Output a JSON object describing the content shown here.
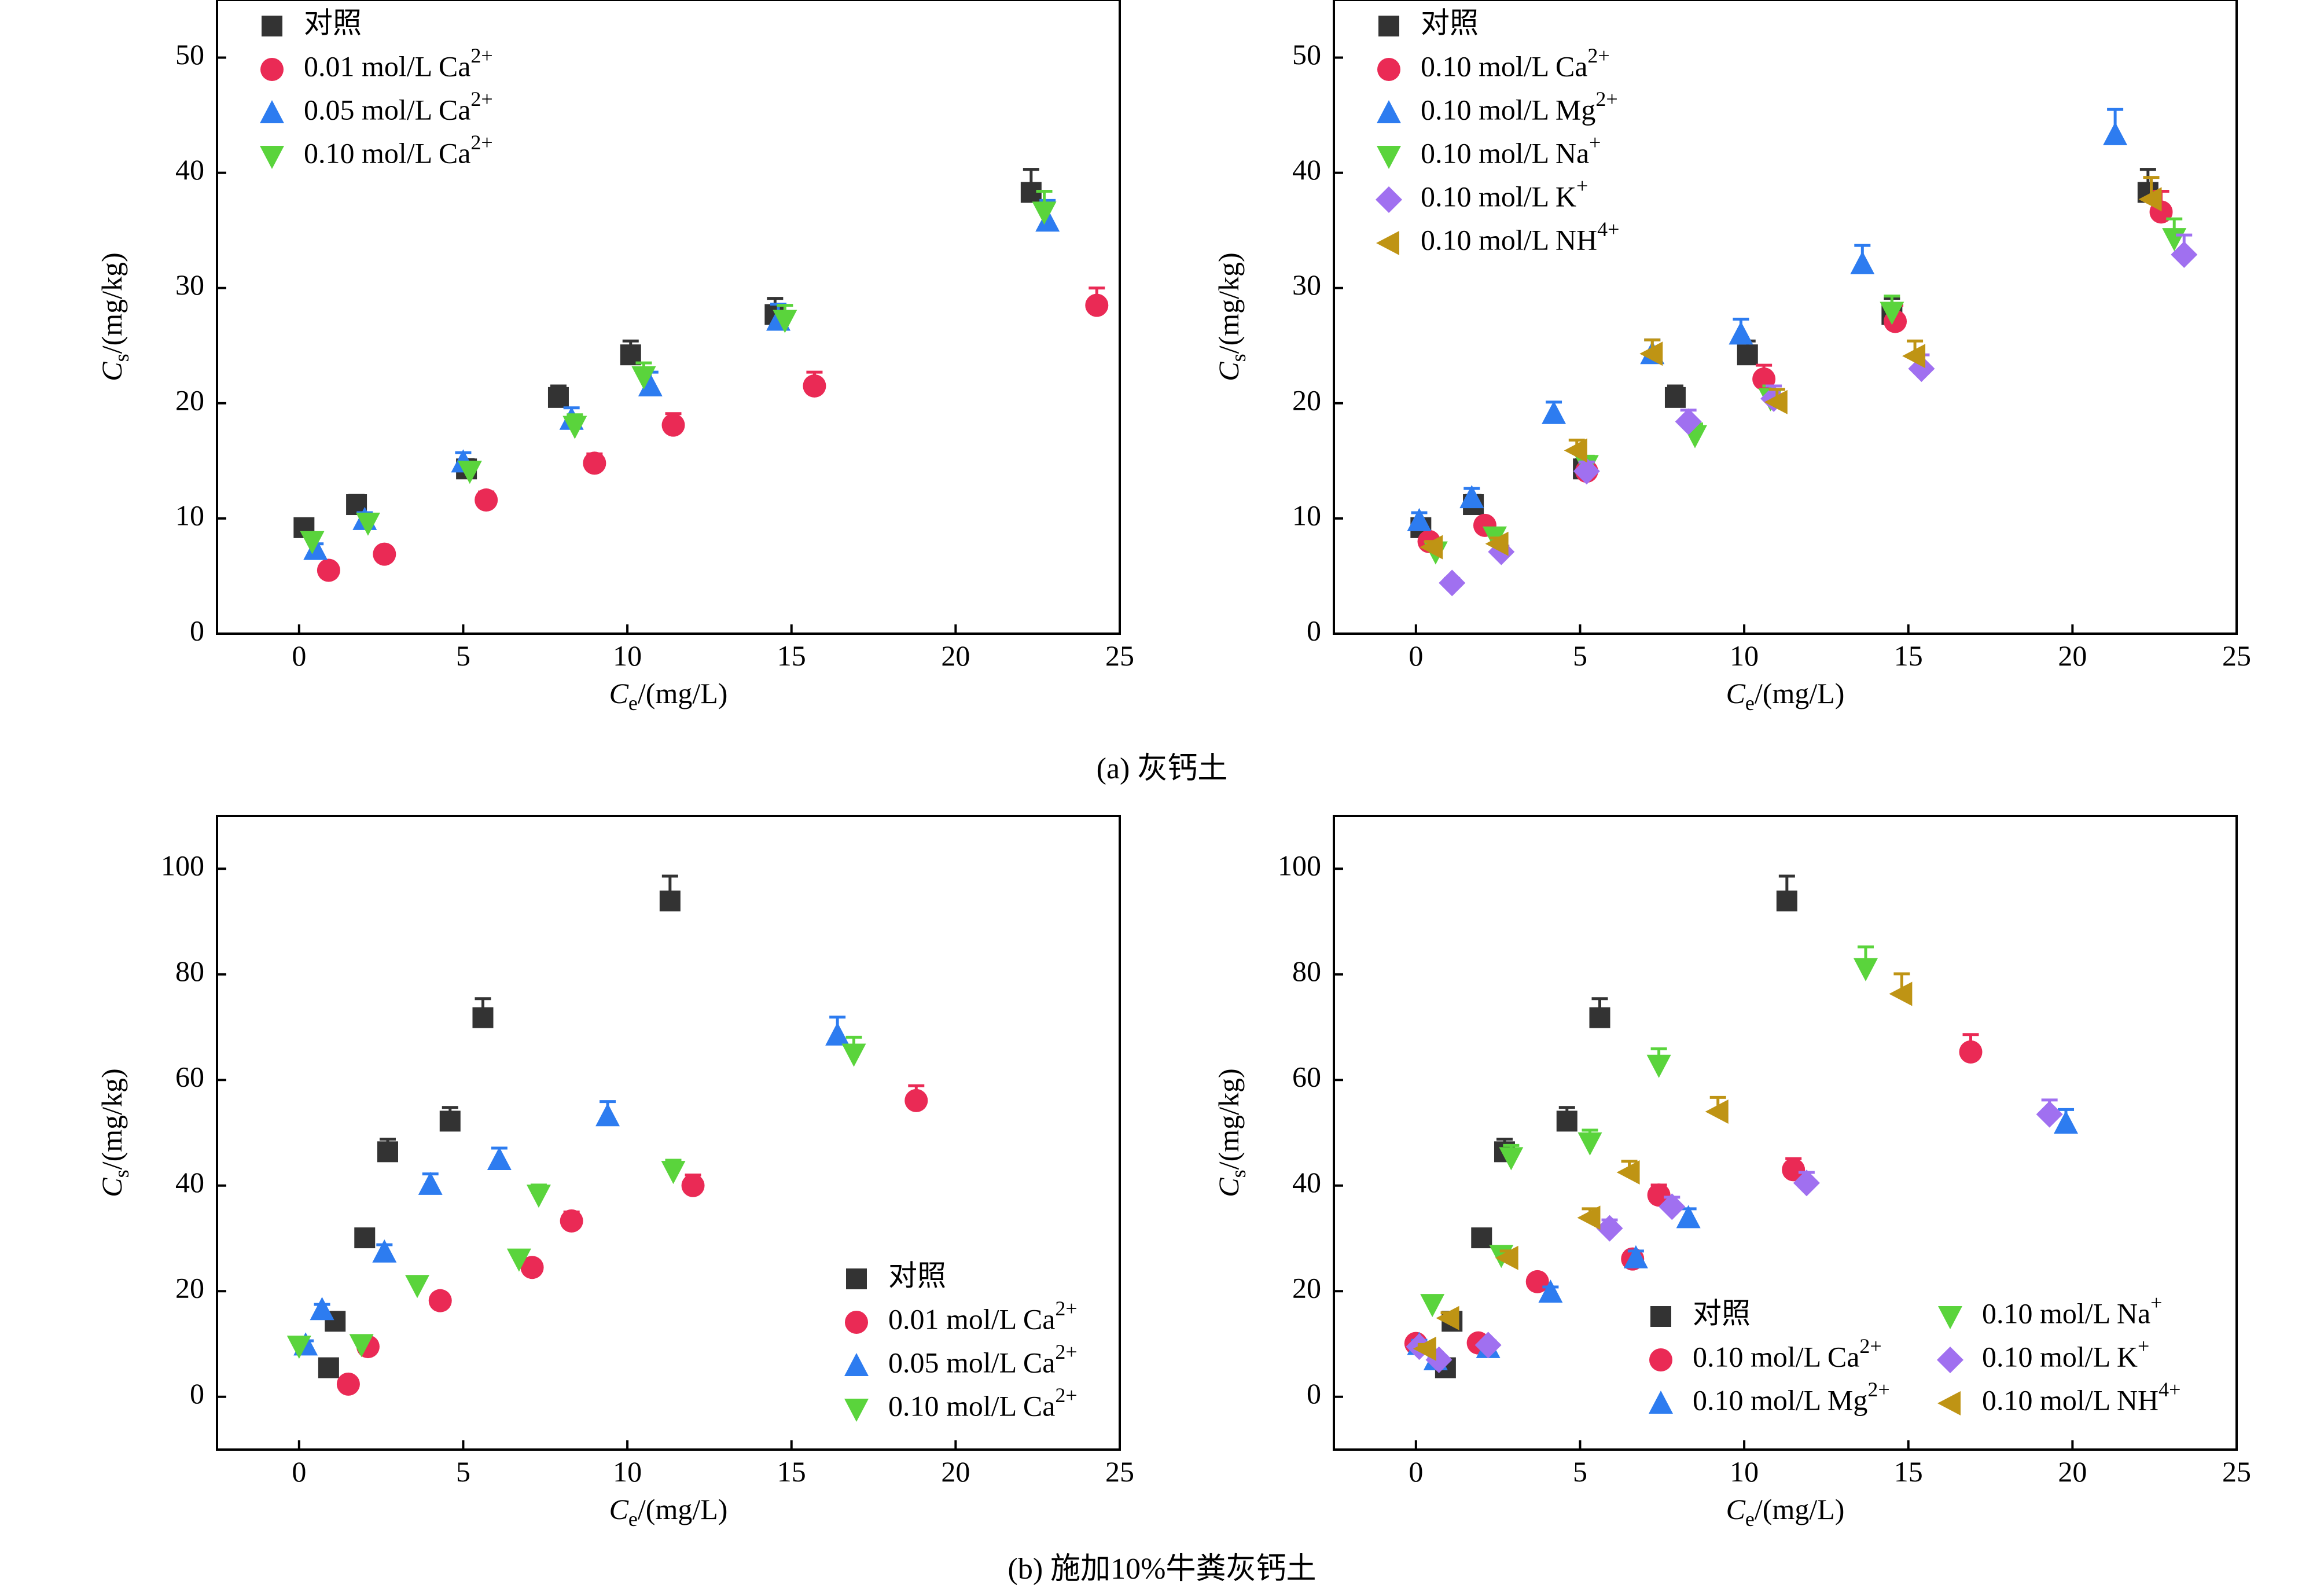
{
  "captions": {
    "a": "(a) 灰钙土",
    "b": "(b) 施加10%牛粪灰钙土"
  },
  "chart_data": [
    {
      "type": "scatter",
      "panel": "a-left",
      "xlabel": "Ce/(mg/L)",
      "ylabel": "Cs/(mg/kg)",
      "xlim": [
        -2.5,
        25
      ],
      "ylim": [
        0,
        55
      ],
      "xticks": [
        0,
        5,
        10,
        15,
        20,
        25
      ],
      "yticks": [
        0,
        10,
        20,
        30,
        40,
        50
      ],
      "legend_position": "top-left",
      "series": [
        {
          "name": "对照",
          "marker": "square",
          "color": "#333333",
          "points": [
            [
              0.15,
              9.2,
              0.6
            ],
            [
              1.75,
              11.2,
              0.8
            ],
            [
              5.1,
              14.3,
              0.8
            ],
            [
              7.9,
              20.5,
              1.0
            ],
            [
              10.1,
              24.2,
              1.2
            ],
            [
              14.5,
              27.7,
              1.4
            ],
            [
              22.3,
              38.3,
              2.0
            ]
          ]
        },
        {
          "name": "0.01 mol/L Ca2+",
          "marker": "circle",
          "color": "#ea2a55",
          "points": [
            [
              0.9,
              5.5,
              0.4
            ],
            [
              2.6,
              6.9,
              0.5
            ],
            [
              5.7,
              11.6,
              0.7
            ],
            [
              9.0,
              14.8,
              0.8
            ],
            [
              11.4,
              18.1,
              1.0
            ],
            [
              15.7,
              21.5,
              1.2
            ],
            [
              24.3,
              28.5,
              1.5
            ]
          ]
        },
        {
          "name": "0.05 mol/L Ca2+",
          "marker": "triangle-up",
          "color": "#2d7cf0",
          "points": [
            [
              0.5,
              7.3,
              0.5
            ],
            [
              2.0,
              9.9,
              0.6
            ],
            [
              5.0,
              14.9,
              0.8
            ],
            [
              8.3,
              18.6,
              1.0
            ],
            [
              10.7,
              21.5,
              1.2
            ],
            [
              14.6,
              27.2,
              1.4
            ],
            [
              22.8,
              35.8,
              1.8
            ]
          ]
        },
        {
          "name": "0.10 mol/L Ca2+",
          "marker": "triangle-down",
          "color": "#5ad43c",
          "points": [
            [
              0.4,
              8.0,
              0.5
            ],
            [
              2.1,
              9.6,
              0.6
            ],
            [
              5.2,
              14.1,
              0.7
            ],
            [
              8.4,
              18.0,
              1.0
            ],
            [
              10.5,
              22.3,
              1.2
            ],
            [
              14.8,
              27.2,
              1.3
            ],
            [
              22.7,
              36.6,
              1.8
            ]
          ]
        }
      ]
    },
    {
      "type": "scatter",
      "panel": "a-right",
      "xlabel": "Ce/(mg/L)",
      "ylabel": "Cs/(mg/kg)",
      "xlim": [
        -2.5,
        25
      ],
      "ylim": [
        0,
        55
      ],
      "xticks": [
        0,
        5,
        10,
        15,
        20,
        25
      ],
      "yticks": [
        0,
        10,
        20,
        30,
        40,
        50
      ],
      "legend_position": "top-left",
      "series": [
        {
          "name": "对照",
          "marker": "square",
          "color": "#333333",
          "points": [
            [
              0.15,
              9.2,
              0.6
            ],
            [
              1.75,
              11.2,
              0.8
            ],
            [
              5.1,
              14.3,
              0.8
            ],
            [
              7.9,
              20.5,
              1.0
            ],
            [
              10.1,
              24.2,
              1.2
            ],
            [
              14.5,
              27.7,
              1.4
            ],
            [
              22.3,
              38.3,
              2.0
            ]
          ]
        },
        {
          "name": "0.10 mol/L Ca2+",
          "marker": "circle",
          "color": "#ea2a55",
          "points": [
            [
              0.4,
              8.0,
              0.5
            ],
            [
              2.1,
              9.4,
              0.6
            ],
            [
              5.2,
              14.1,
              0.8
            ],
            [
              10.6,
              22.1,
              1.2
            ],
            [
              14.6,
              27.1,
              1.4
            ],
            [
              22.7,
              36.6,
              1.8
            ]
          ]
        },
        {
          "name": "0.10 mol/L Mg2+",
          "marker": "triangle-up",
          "color": "#2d7cf0",
          "points": [
            [
              0.1,
              9.8,
              0.7
            ],
            [
              1.7,
              11.8,
              0.8
            ],
            [
              4.2,
              19.1,
              1.0
            ],
            [
              7.2,
              24.3,
              1.2
            ],
            [
              9.9,
              26.0,
              1.3
            ],
            [
              13.6,
              32.1,
              1.6
            ],
            [
              21.3,
              43.3,
              2.2
            ]
          ]
        },
        {
          "name": "0.10 mol/L Na+",
          "marker": "triangle-down",
          "color": "#5ad43c",
          "points": [
            [
              0.6,
              7.1,
              0.5
            ],
            [
              2.4,
              8.4,
              0.6
            ],
            [
              5.2,
              14.6,
              0.8
            ],
            [
              8.5,
              17.2,
              1.0
            ],
            [
              10.8,
              20.4,
              1.1
            ],
            [
              14.5,
              27.9,
              1.4
            ],
            [
              23.1,
              34.3,
              1.7
            ]
          ]
        },
        {
          "name": "0.10 mol/L K+",
          "marker": "diamond",
          "color": "#a070f0",
          "points": [
            [
              1.1,
              4.4,
              0.4
            ],
            [
              2.6,
              7.1,
              0.5
            ],
            [
              5.2,
              14.1,
              0.8
            ],
            [
              8.3,
              18.4,
              1.0
            ],
            [
              10.9,
              20.4,
              1.1
            ],
            [
              15.4,
              23.0,
              1.2
            ],
            [
              23.4,
              32.9,
              1.7
            ]
          ]
        },
        {
          "name": "0.10 mol/L NH4+",
          "marker": "triangle-left",
          "color": "#bf9414",
          "points": [
            [
              0.5,
              7.5,
              0.5
            ],
            [
              2.5,
              7.8,
              0.5
            ],
            [
              4.9,
              15.9,
              0.9
            ],
            [
              7.2,
              24.3,
              1.2
            ],
            [
              11.0,
              20.1,
              1.1
            ],
            [
              15.2,
              24.1,
              1.3
            ],
            [
              22.4,
              37.7,
              1.9
            ]
          ]
        }
      ]
    },
    {
      "type": "scatter",
      "panel": "b-left",
      "xlabel": "Ce/(mg/L)",
      "ylabel": "Cs/(mg/kg)",
      "xlim": [
        -2.5,
        25
      ],
      "ylim": [
        -10,
        110
      ],
      "xticks": [
        0,
        5,
        10,
        15,
        20,
        25
      ],
      "yticks": [
        0,
        20,
        40,
        60,
        80,
        100
      ],
      "legend_position": "bottom-right",
      "series": [
        {
          "name": "对照",
          "marker": "square",
          "color": "#333333",
          "points": [
            [
              0.9,
              5.5,
              1.0
            ],
            [
              1.1,
              14.3,
              1.2
            ],
            [
              2.0,
              30.1,
              1.6
            ],
            [
              2.7,
              46.4,
              2.4
            ],
            [
              4.6,
              52.2,
              2.6
            ],
            [
              5.6,
              71.8,
              3.6
            ],
            [
              11.3,
              93.9,
              4.7
            ]
          ]
        },
        {
          "name": "0.01 mol/L Ca2+",
          "marker": "circle",
          "color": "#ea2a55",
          "points": [
            [
              1.5,
              2.4,
              0.5
            ],
            [
              2.1,
              9.5,
              0.8
            ],
            [
              4.3,
              18.2,
              1.0
            ],
            [
              7.1,
              24.5,
              1.3
            ],
            [
              8.3,
              33.3,
              1.7
            ],
            [
              12.0,
              40.0,
              2.0
            ],
            [
              18.8,
              56.1,
              2.8
            ]
          ]
        },
        {
          "name": "0.05 mol/L Ca2+",
          "marker": "triangle-up",
          "color": "#2d7cf0",
          "points": [
            [
              0.2,
              9.8,
              0.8
            ],
            [
              0.7,
              16.5,
              1.0
            ],
            [
              2.6,
              27.4,
              1.4
            ],
            [
              4.0,
              40.2,
              2.0
            ],
            [
              6.1,
              44.9,
              2.2
            ],
            [
              9.4,
              53.2,
              2.7
            ],
            [
              16.4,
              68.5,
              3.4
            ]
          ]
        },
        {
          "name": "0.10 mol/L Ca2+",
          "marker": "triangle-down",
          "color": "#5ad43c",
          "points": [
            [
              0.0,
              9.6,
              0.8
            ],
            [
              1.9,
              9.9,
              0.8
            ],
            [
              3.6,
              21.1,
              1.1
            ],
            [
              6.7,
              26.1,
              1.3
            ],
            [
              7.3,
              38.2,
              1.9
            ],
            [
              11.4,
              42.7,
              2.1
            ],
            [
              16.9,
              64.9,
              3.2
            ]
          ]
        }
      ]
    },
    {
      "type": "scatter",
      "panel": "b-right",
      "xlabel": "Ce/(mg/L)",
      "ylabel": "Cs/(mg/kg)",
      "xlim": [
        -2.5,
        25
      ],
      "ylim": [
        -10,
        110
      ],
      "xticks": [
        0,
        5,
        10,
        15,
        20,
        25
      ],
      "yticks": [
        0,
        20,
        40,
        60,
        80,
        100
      ],
      "legend_position": "bottom-right",
      "series": [
        {
          "name": "对照",
          "marker": "square",
          "color": "#333333",
          "points": [
            [
              0.9,
              5.5,
              1.0
            ],
            [
              1.1,
              14.3,
              1.2
            ],
            [
              2.0,
              30.1,
              1.6
            ],
            [
              2.7,
              46.4,
              2.4
            ],
            [
              4.6,
              52.2,
              2.6
            ],
            [
              5.6,
              71.8,
              3.6
            ],
            [
              11.3,
              93.9,
              4.7
            ]
          ]
        },
        {
          "name": "0.10 mol/L Ca2+",
          "marker": "circle",
          "color": "#ea2a55",
          "points": [
            [
              0.0,
              10.1,
              0.8
            ],
            [
              1.9,
              10.2,
              0.8
            ],
            [
              3.7,
              21.8,
              1.1
            ],
            [
              6.6,
              26.1,
              1.3
            ],
            [
              7.4,
              38.2,
              1.9
            ],
            [
              11.5,
              43.0,
              2.1
            ],
            [
              16.9,
              65.3,
              3.3
            ]
          ]
        },
        {
          "name": "0.10 mol/L Mg2+",
          "marker": "triangle-up",
          "color": "#2d7cf0",
          "points": [
            [
              0.1,
              9.9,
              0.8
            ],
            [
              0.6,
              7.0,
              0.7
            ],
            [
              2.2,
              9.3,
              0.8
            ],
            [
              4.1,
              19.8,
              1.0
            ],
            [
              6.7,
              26.3,
              1.3
            ],
            [
              8.3,
              33.9,
              1.7
            ],
            [
              19.8,
              51.8,
              2.6
            ]
          ]
        },
        {
          "name": "0.10 mol/L Na+",
          "marker": "triangle-down",
          "color": "#5ad43c",
          "points": [
            [
              0.5,
              17.5,
              0.9
            ],
            [
              2.6,
              26.8,
              1.3
            ],
            [
              2.9,
              45.3,
              2.3
            ],
            [
              5.3,
              48.1,
              2.4
            ],
            [
              7.4,
              62.8,
              3.1
            ],
            [
              13.7,
              81.1,
              4.1
            ]
          ]
        },
        {
          "name": "0.10 mol/L K+",
          "marker": "diamond",
          "color": "#a070f0",
          "points": [
            [
              0.1,
              9.5,
              0.8
            ],
            [
              0.7,
              7.0,
              0.7
            ],
            [
              2.2,
              9.8,
              0.8
            ],
            [
              5.9,
              31.9,
              1.6
            ],
            [
              7.8,
              36.0,
              1.8
            ],
            [
              11.9,
              40.5,
              2.0
            ],
            [
              19.3,
              53.5,
              2.7
            ]
          ]
        },
        {
          "name": "0.10 mol/L NH4+",
          "marker": "triangle-left",
          "color": "#bf9414",
          "points": [
            [
              0.3,
              9.1,
              0.8
            ],
            [
              1.0,
              14.9,
              1.0
            ],
            [
              2.8,
              26.3,
              1.3
            ],
            [
              5.3,
              33.9,
              1.7
            ],
            [
              6.5,
              42.5,
              2.1
            ],
            [
              9.2,
              54.0,
              2.7
            ],
            [
              14.8,
              76.3,
              3.8
            ]
          ]
        }
      ]
    }
  ]
}
